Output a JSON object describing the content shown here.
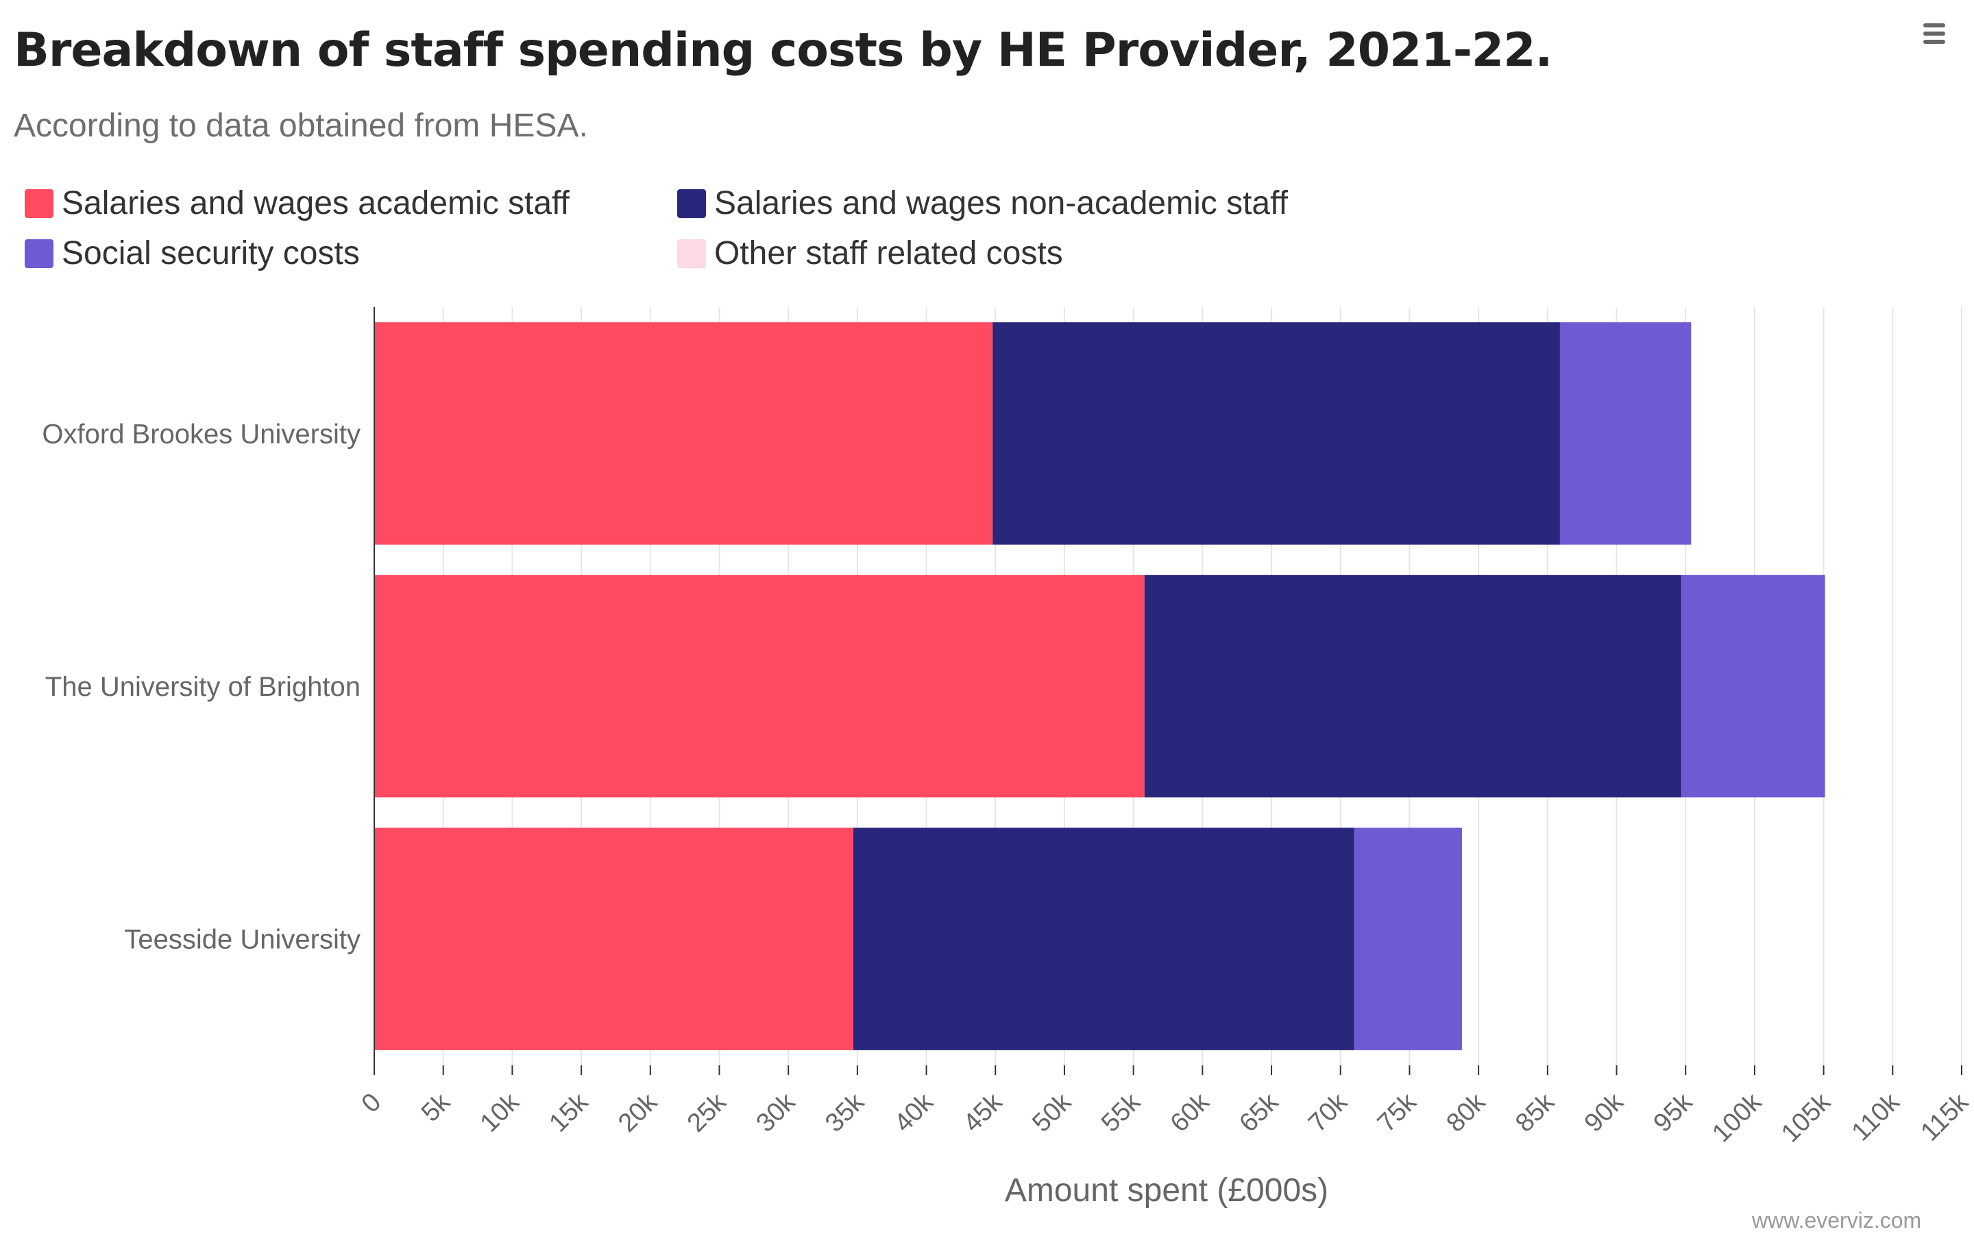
{
  "chart_data": {
    "type": "bar",
    "orientation": "horizontal",
    "stacked": true,
    "title": "Breakdown of staff spending costs by HE Provider, 2021-22.",
    "subtitle": "According to data obtained from HESA.",
    "categories": [
      "Oxford Brookes University",
      "The University of Brighton",
      "Teesside University"
    ],
    "series": [
      {
        "name": "Salaries and wages academic staff",
        "color": "#ff4a61",
        "values": [
          44800,
          55800,
          34700
        ]
      },
      {
        "name": "Salaries and wages non-academic staff",
        "color": "#29277c",
        "values": [
          41100,
          38900,
          36300
        ]
      },
      {
        "name": "Social security costs",
        "color": "#6e5ad3",
        "values": [
          9500,
          10400,
          7800
        ]
      },
      {
        "name": "Other staff related costs",
        "color": "#fbdae6",
        "values": [
          0,
          0,
          0
        ]
      }
    ],
    "xlabel": "Amount spent (£000s)",
    "ylabel": "",
    "xlim": [
      0,
      115000
    ],
    "x_ticks": [
      "0",
      "5k",
      "10k",
      "15k",
      "20k",
      "25k",
      "30k",
      "35k",
      "40k",
      "45k",
      "50k",
      "55k",
      "60k",
      "65k",
      "70k",
      "75k",
      "80k",
      "85k",
      "90k",
      "95k",
      "100k",
      "105k",
      "110k",
      "115k"
    ],
    "grid": true,
    "legend_position": "top-left"
  },
  "menu": {
    "icon": "hamburger-menu-icon"
  },
  "credit": "www.everviz.com"
}
